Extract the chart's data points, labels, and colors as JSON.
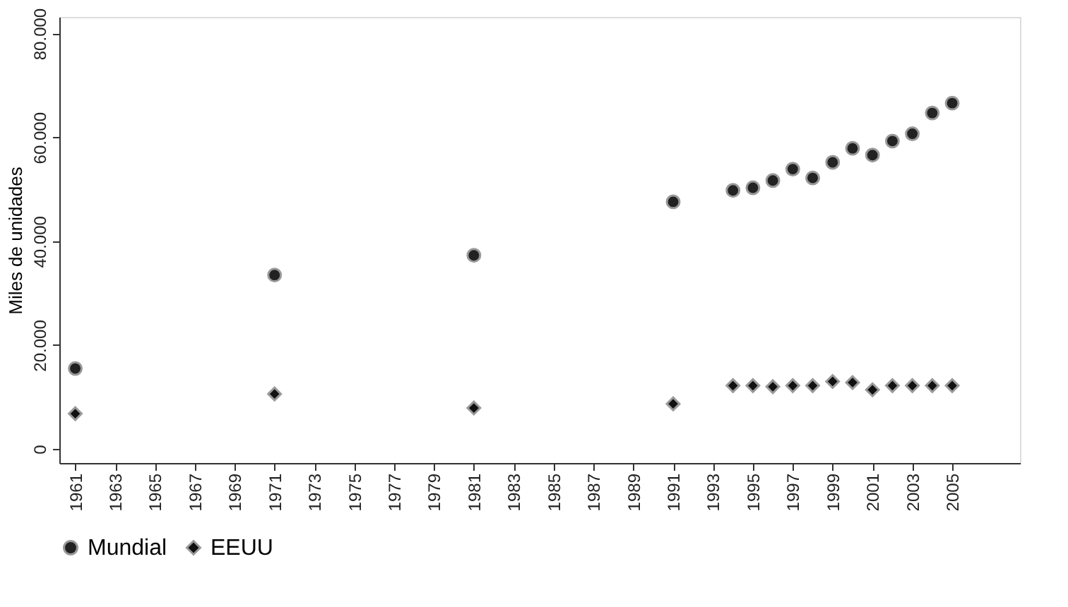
{
  "chart_data": {
    "type": "scatter",
    "ylabel": "Miles de unidades",
    "xlim": [
      1960.2,
      2008.4
    ],
    "ylim": [
      -2700,
      83200
    ],
    "xticks": [
      1961,
      1963,
      1965,
      1967,
      1969,
      1971,
      1973,
      1975,
      1977,
      1979,
      1981,
      1983,
      1985,
      1987,
      1989,
      1991,
      1993,
      1995,
      1997,
      1999,
      2001,
      2003,
      2005
    ],
    "yticks": [
      0,
      {
        "value": 20000,
        "label": "20.000"
      },
      {
        "value": 40000,
        "label": "40.000"
      },
      {
        "value": 60000,
        "label": "60.000"
      },
      {
        "value": 80000,
        "label": "80.000"
      }
    ],
    "x": [
      1961,
      1971,
      1981,
      1991,
      1994,
      1995,
      1996,
      1997,
      1998,
      1999,
      2000,
      2001,
      2002,
      2003,
      2004,
      2005
    ],
    "series": [
      {
        "name": "Mundial",
        "color": "#222222",
        "marker": "circle",
        "values": [
          15500,
          33500,
          37300,
          47600,
          49800,
          50300,
          51700,
          53900,
          52200,
          55200,
          57900,
          56600,
          59300,
          60700,
          64700,
          66600
        ]
      },
      {
        "name": "EEUU",
        "color": "#111111",
        "marker": "diamond",
        "values": [
          6800,
          10600,
          7900,
          8700,
          12200,
          12200,
          12000,
          12200,
          12200,
          13000,
          12800,
          11400,
          12200,
          12200,
          12200,
          12200
        ]
      }
    ],
    "legend": "bottom",
    "grid": false
  }
}
